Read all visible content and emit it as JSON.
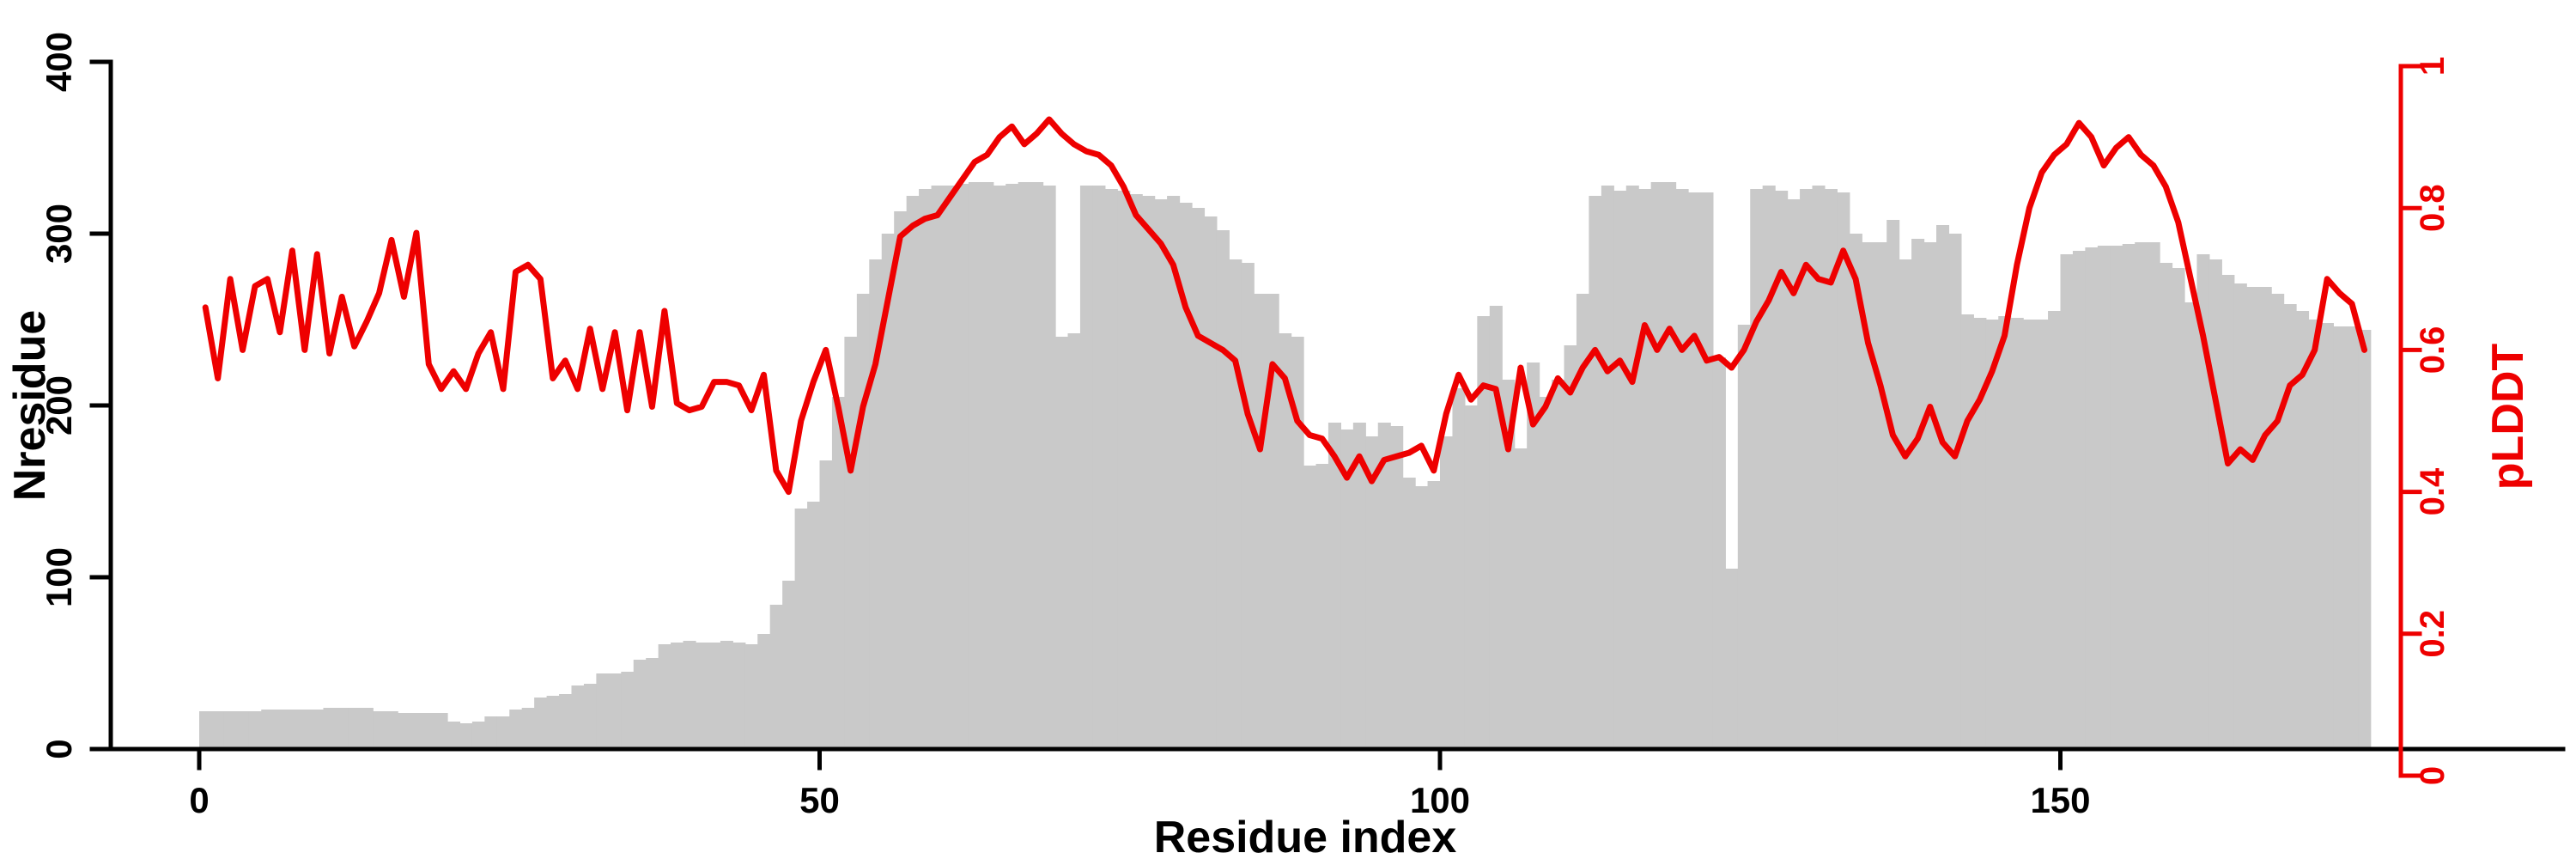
{
  "page": {
    "background": "#ffffff"
  },
  "chart_data": {
    "type": "bar",
    "subtype": "dual-axis bar+line profile",
    "title": "",
    "xlabel": "Residue index",
    "x_tick_labels": [
      "0",
      "50",
      "100",
      "150"
    ],
    "x_tick_values": [
      0,
      50,
      100,
      150
    ],
    "x_range": [
      0,
      178
    ],
    "n_points": 175,
    "grid": false,
    "legend_position": "none",
    "left_axis": {
      "label": "Nresidue",
      "tick_labels": [
        "0",
        "100",
        "200",
        "300",
        "400"
      ],
      "tick_values": [
        0,
        100,
        200,
        300,
        400
      ],
      "range": [
        0,
        400
      ],
      "color": "#000000"
    },
    "right_axis": {
      "label": "pLDDT",
      "tick_labels": [
        "0",
        "0.2",
        "0.4",
        "0.6",
        "0.8",
        "1"
      ],
      "tick_values": [
        0,
        0.2,
        0.4,
        0.6,
        0.8,
        1
      ],
      "range": [
        0,
        1
      ],
      "color": "#ee0000"
    },
    "series": [
      {
        "name": "Nresidue",
        "type": "bar",
        "axis": "left",
        "color": "#c9c9c9",
        "values": [
          22,
          22,
          22,
          22,
          22,
          23,
          23,
          23,
          23,
          23,
          24,
          24,
          24,
          24,
          22,
          22,
          21,
          21,
          21,
          21,
          16,
          15,
          16,
          19,
          19,
          23,
          24,
          30,
          31,
          32,
          37,
          38,
          44,
          44,
          45,
          52,
          53,
          61,
          62,
          63,
          62,
          62,
          63,
          62,
          61,
          67,
          84,
          98,
          140,
          144,
          168,
          205,
          240,
          265,
          285,
          300,
          313,
          322,
          326,
          328,
          328,
          329,
          330,
          330,
          328,
          329,
          330,
          330,
          328,
          240,
          242,
          328,
          328,
          326,
          325,
          323,
          322,
          320,
          322,
          318,
          315,
          310,
          302,
          285,
          283,
          265,
          265,
          242,
          240,
          165,
          166,
          190,
          186,
          190,
          182,
          190,
          188,
          158,
          153,
          156,
          182,
          210,
          200,
          252,
          258,
          215,
          175,
          225,
          205,
          215,
          235,
          265,
          322,
          328,
          325,
          328,
          326,
          330,
          330,
          326,
          324,
          324,
          228,
          105,
          247,
          326,
          328,
          325,
          320,
          326,
          328,
          326,
          324,
          300,
          295,
          295,
          308,
          285,
          297,
          295,
          305,
          300,
          253,
          251,
          250,
          252,
          251,
          250,
          250,
          255,
          288,
          290,
          292,
          293,
          293,
          294,
          295,
          295,
          283,
          280,
          260,
          288,
          285,
          276,
          271,
          269,
          269,
          265,
          259,
          255,
          250,
          248,
          246,
          246,
          244
        ]
      },
      {
        "name": "pLDDT",
        "type": "line",
        "axis": "right",
        "color": "#ee0000",
        "values": [
          0.66,
          0.56,
          0.7,
          0.6,
          0.69,
          0.7,
          0.625,
          0.74,
          0.6,
          0.735,
          0.595,
          0.675,
          0.605,
          0.64,
          0.68,
          0.755,
          0.675,
          0.765,
          0.58,
          0.545,
          0.57,
          0.545,
          0.595,
          0.625,
          0.545,
          0.71,
          0.72,
          0.7,
          0.56,
          0.585,
          0.545,
          0.63,
          0.545,
          0.625,
          0.515,
          0.625,
          0.52,
          0.655,
          0.525,
          0.515,
          0.52,
          0.555,
          0.555,
          0.55,
          0.515,
          0.565,
          0.43,
          0.4,
          0.5,
          0.555,
          0.6,
          0.52,
          0.43,
          0.52,
          0.58,
          0.67,
          0.76,
          0.775,
          0.785,
          0.79,
          0.815,
          0.84,
          0.865,
          0.875,
          0.9,
          0.915,
          0.89,
          0.905,
          0.925,
          0.905,
          0.89,
          0.88,
          0.875,
          0.86,
          0.83,
          0.79,
          0.77,
          0.75,
          0.72,
          0.66,
          0.62,
          0.61,
          0.6,
          0.585,
          0.51,
          0.46,
          0.58,
          0.56,
          0.5,
          0.48,
          0.475,
          0.45,
          0.42,
          0.45,
          0.415,
          0.445,
          0.45,
          0.455,
          0.465,
          0.43,
          0.51,
          0.565,
          0.53,
          0.55,
          0.545,
          0.46,
          0.575,
          0.495,
          0.52,
          0.56,
          0.54,
          0.575,
          0.6,
          0.57,
          0.585,
          0.555,
          0.635,
          0.6,
          0.63,
          0.6,
          0.62,
          0.585,
          0.59,
          0.575,
          0.6,
          0.64,
          0.67,
          0.71,
          0.68,
          0.72,
          0.7,
          0.695,
          0.74,
          0.7,
          0.61,
          0.55,
          0.48,
          0.45,
          0.475,
          0.52,
          0.47,
          0.45,
          0.5,
          0.53,
          0.57,
          0.62,
          0.72,
          0.8,
          0.85,
          0.875,
          0.89,
          0.92,
          0.9,
          0.86,
          0.885,
          0.9,
          0.875,
          0.86,
          0.83,
          0.78,
          0.7,
          0.62,
          0.53,
          0.44,
          0.46,
          0.445,
          0.48,
          0.5,
          0.55,
          0.565,
          0.6,
          0.7,
          0.68,
          0.665,
          0.6
        ]
      }
    ]
  }
}
